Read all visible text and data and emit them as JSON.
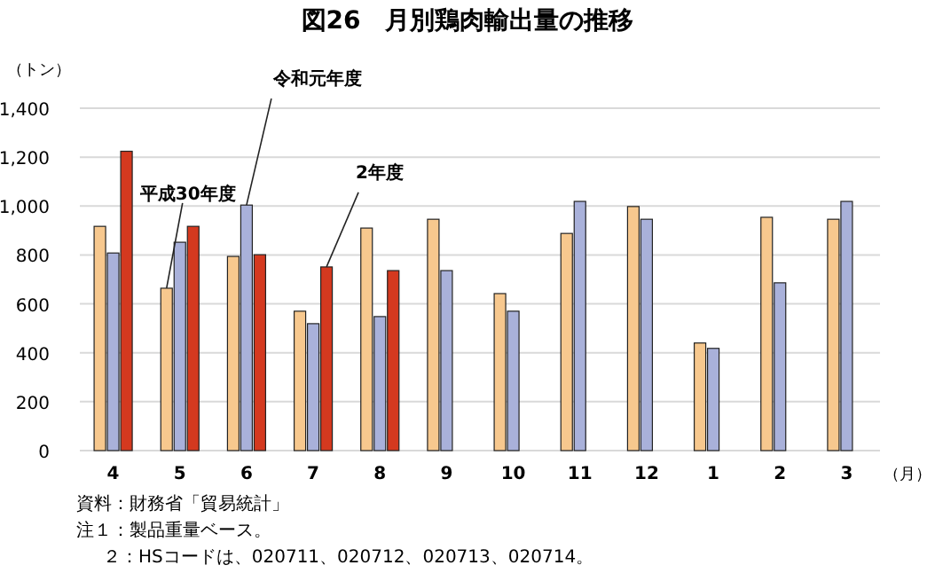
{
  "chart_data": {
    "type": "bar",
    "title": "図26　月別鶏肉輸出量の推移",
    "ylabel": "（トン）",
    "xlabel": "（月）",
    "categories": [
      "4",
      "5",
      "6",
      "7",
      "8",
      "9",
      "10",
      "11",
      "12",
      "1",
      "2",
      "3"
    ],
    "series": [
      {
        "name": "平成30年度",
        "color": "#f7c88e",
        "values": [
          917,
          664,
          794,
          570,
          910,
          946,
          642,
          888,
          998,
          440,
          954,
          946
        ]
      },
      {
        "name": "令和元年度",
        "color": "#a9b1da",
        "values": [
          808,
          852,
          1004,
          519,
          548,
          736,
          570,
          1019,
          946,
          418,
          686,
          1019
        ]
      },
      {
        "name": "2年度",
        "color": "#d4391f",
        "values": [
          1224,
          917,
          801,
          751,
          736,
          null,
          null,
          null,
          null,
          null,
          null,
          null
        ]
      }
    ],
    "ylim": [
      0,
      1400
    ],
    "yticks": [
      {
        "value": 0,
        "label": "0"
      },
      {
        "value": 200,
        "label": "200"
      },
      {
        "value": 400,
        "label": "400"
      },
      {
        "value": 600,
        "label": "600"
      },
      {
        "value": 800,
        "label": "800"
      },
      {
        "value": 1000,
        "label": "1,000"
      },
      {
        "value": 1200,
        "label": "1,200"
      },
      {
        "value": 1400,
        "label": "1,400"
      }
    ],
    "grid": "y",
    "annotations": [
      "資料：財務省「貿易統計」",
      "注１：製品重量ベース。",
      "２：HSコードは、020711、020712、020713、020714。"
    ]
  }
}
